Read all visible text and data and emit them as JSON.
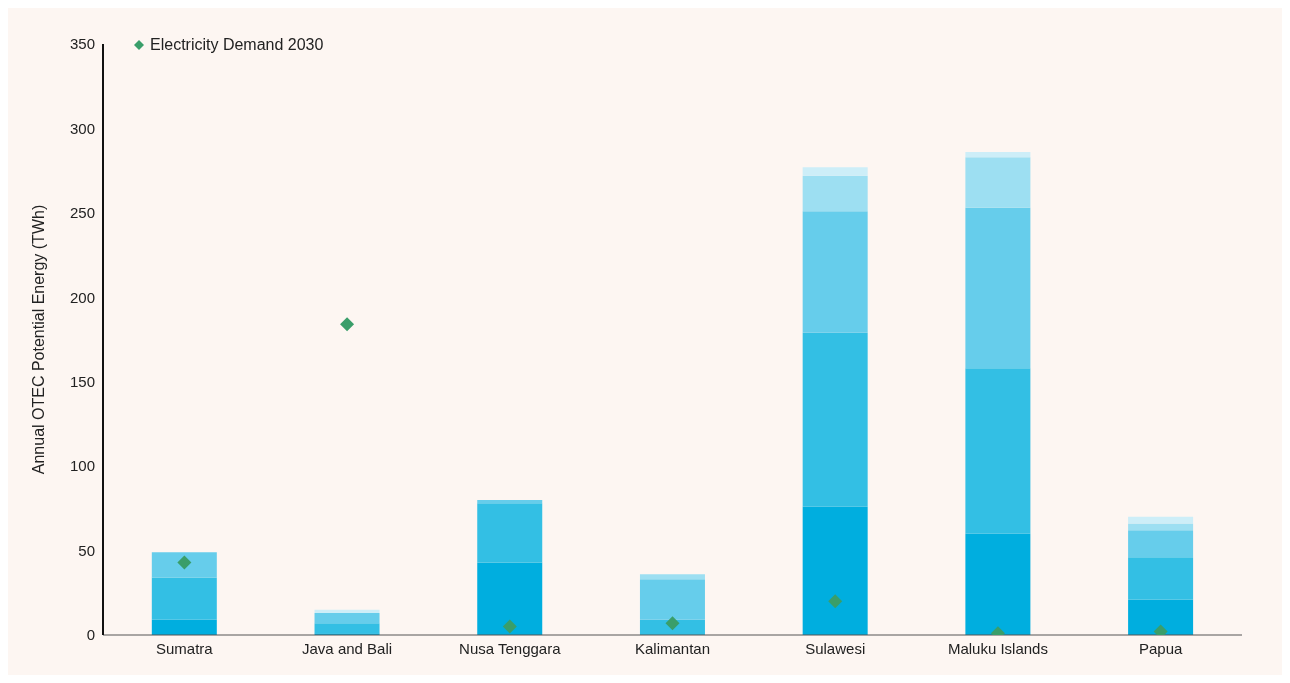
{
  "chart_data": {
    "type": "bar",
    "stacked": true,
    "ylabel": "Annual OTEC Potential Energy (TWh)",
    "categories": [
      "Sumatra",
      "Java and Bali",
      "Nusa Tenggara",
      "Kalimantan",
      "Sulawesi",
      "Maluku Islands",
      "Papua"
    ],
    "series": [
      {
        "color": "#00aedf",
        "values": [
          9,
          1,
          43,
          0,
          76,
          60,
          21
        ]
      },
      {
        "color": "#33bfe4",
        "values": [
          25,
          6,
          35,
          9,
          103,
          98,
          25
        ]
      },
      {
        "color": "#66cdeb",
        "values": [
          15,
          6,
          2,
          24,
          72,
          95,
          16
        ]
      },
      {
        "color": "#9ddff2",
        "values": [
          0,
          0,
          0,
          3,
          21,
          30,
          4
        ]
      },
      {
        "color": "#cdeef8",
        "values": [
          0,
          2,
          0,
          0,
          5,
          3,
          4
        ]
      },
      {
        "type": "scatter",
        "name": "Electricity Demand 2030",
        "color": "#3a9e6a",
        "marker": "diamond",
        "values": [
          43,
          184,
          5,
          7,
          20,
          1,
          2
        ]
      }
    ],
    "ylim": [
      0,
      350
    ],
    "yticks": [
      0,
      50,
      100,
      150,
      200,
      250,
      300,
      350
    ],
    "legend": "top left"
  }
}
